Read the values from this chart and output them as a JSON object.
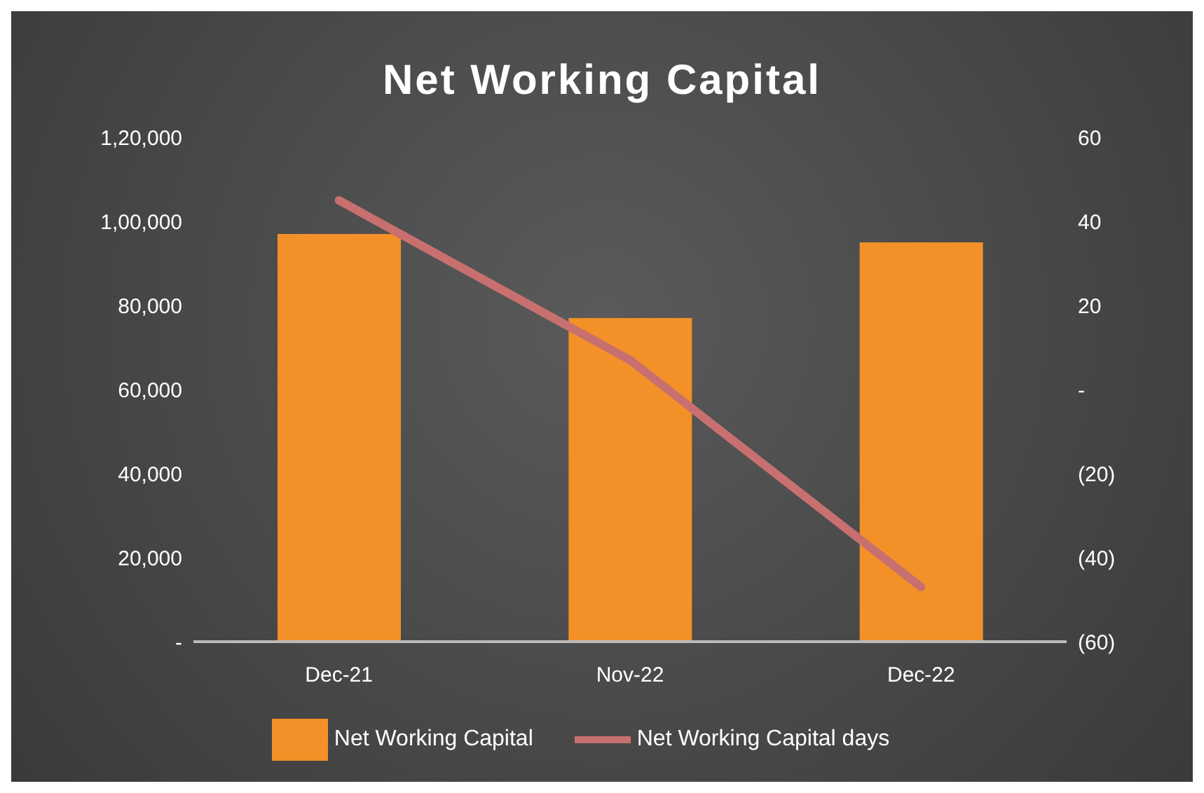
{
  "chart_data": {
    "type": "bar",
    "title": "Net Working Capital",
    "categories": [
      "Dec-21",
      "Nov-22",
      "Dec-22"
    ],
    "series": [
      {
        "name": "Net Working Capital",
        "color": "#f39128",
        "values": [
          97000,
          77000,
          95000
        ]
      },
      {
        "name": "Net Working Capital days",
        "type": "line",
        "axis": "y2",
        "color": "#c87070",
        "values": [
          45,
          7,
          -47
        ]
      }
    ],
    "ylim": [
      0,
      120000
    ],
    "yticks": [
      {
        "value": 0,
        "label": "-"
      },
      {
        "value": 20000,
        "label": "20,000"
      },
      {
        "value": 40000,
        "label": "40,000"
      },
      {
        "value": 60000,
        "label": "60,000"
      },
      {
        "value": 80000,
        "label": "80,000"
      },
      {
        "value": 100000,
        "label": "1,00,000"
      },
      {
        "value": 120000,
        "label": "1,20,000"
      }
    ],
    "y2lim": [
      -60,
      60
    ],
    "y2ticks": [
      {
        "value": -60,
        "label": "(60)"
      },
      {
        "value": -40,
        "label": "(40)"
      },
      {
        "value": -20,
        "label": "(20)"
      },
      {
        "value": 0,
        "label": "-"
      },
      20,
      40,
      60
    ],
    "grid": false,
    "legend": "bottom",
    "marker": "none"
  }
}
